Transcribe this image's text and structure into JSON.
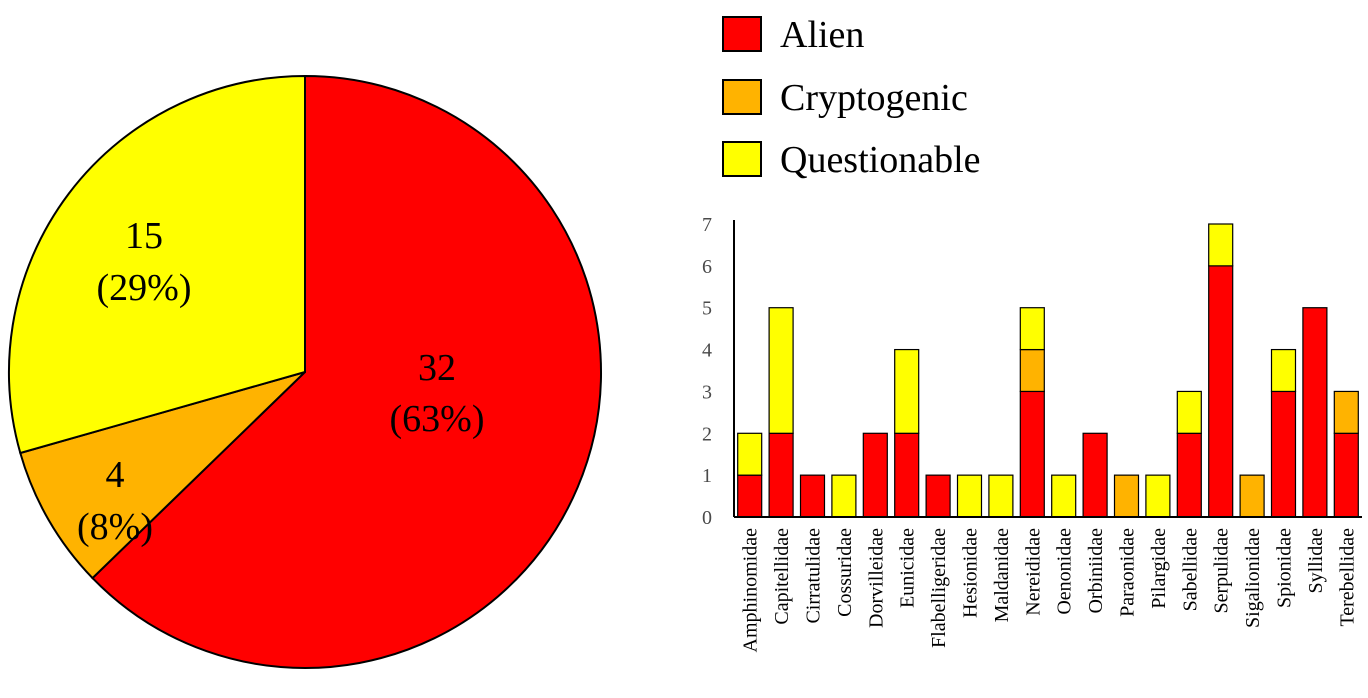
{
  "colors": {
    "alien": "#ff0000",
    "cryptogenic": "#ffb300",
    "questionable": "#ffff00",
    "stroke": "#000000"
  },
  "chart_data": [
    {
      "type": "pie",
      "slices": [
        {
          "name": "Alien",
          "value": 32,
          "percent": 63,
          "label_count": "32",
          "label_pct": "(63%)",
          "color": "#ff0000"
        },
        {
          "name": "Cryptogenic",
          "value": 4,
          "percent": 8,
          "label_count": "4",
          "label_pct": "(8%)",
          "color": "#ffb300"
        },
        {
          "name": "Questionable",
          "value": 15,
          "percent": 29,
          "label_count": "15",
          "label_pct": "(29%)",
          "color": "#ffff00"
        }
      ]
    },
    {
      "type": "bar",
      "stacked": true,
      "legend": [
        "Alien",
        "Cryptogenic",
        "Questionable"
      ],
      "legend_position": "top",
      "categories": [
        "Amphinomidae",
        "Capitellidae",
        "Cirratulidae",
        "Cossuridae",
        "Dorvilleidae",
        "Eunicidae",
        "Flabelligeridae",
        "Hesionidae",
        "Maldanidae",
        "Nereididae",
        "Oenonidae",
        "Orbiniidae",
        "Paraonidae",
        "Pilargidae",
        "Sabellidae",
        "Serpulidae",
        "Sigalionidae",
        "Spionidae",
        "Syllidae",
        "Terebellidae"
      ],
      "series": [
        {
          "name": "Alien",
          "color": "#ff0000",
          "values": [
            1,
            2,
            1,
            0,
            2,
            2,
            1,
            0,
            0,
            3,
            0,
            2,
            0,
            0,
            2,
            6,
            0,
            3,
            5,
            2
          ]
        },
        {
          "name": "Cryptogenic",
          "color": "#ffb300",
          "values": [
            0,
            0,
            0,
            0,
            0,
            0,
            0,
            0,
            0,
            1,
            0,
            0,
            1,
            0,
            0,
            0,
            1,
            0,
            0,
            1
          ]
        },
        {
          "name": "Questionable",
          "color": "#ffff00",
          "values": [
            1,
            3,
            0,
            1,
            0,
            2,
            0,
            1,
            1,
            1,
            1,
            0,
            0,
            1,
            1,
            1,
            0,
            1,
            0,
            0
          ]
        }
      ],
      "yticks": [
        "0",
        "1",
        "2",
        "3",
        "4",
        "5",
        "6",
        "7"
      ],
      "ylim": [
        0,
        7
      ],
      "grid": false
    }
  ]
}
